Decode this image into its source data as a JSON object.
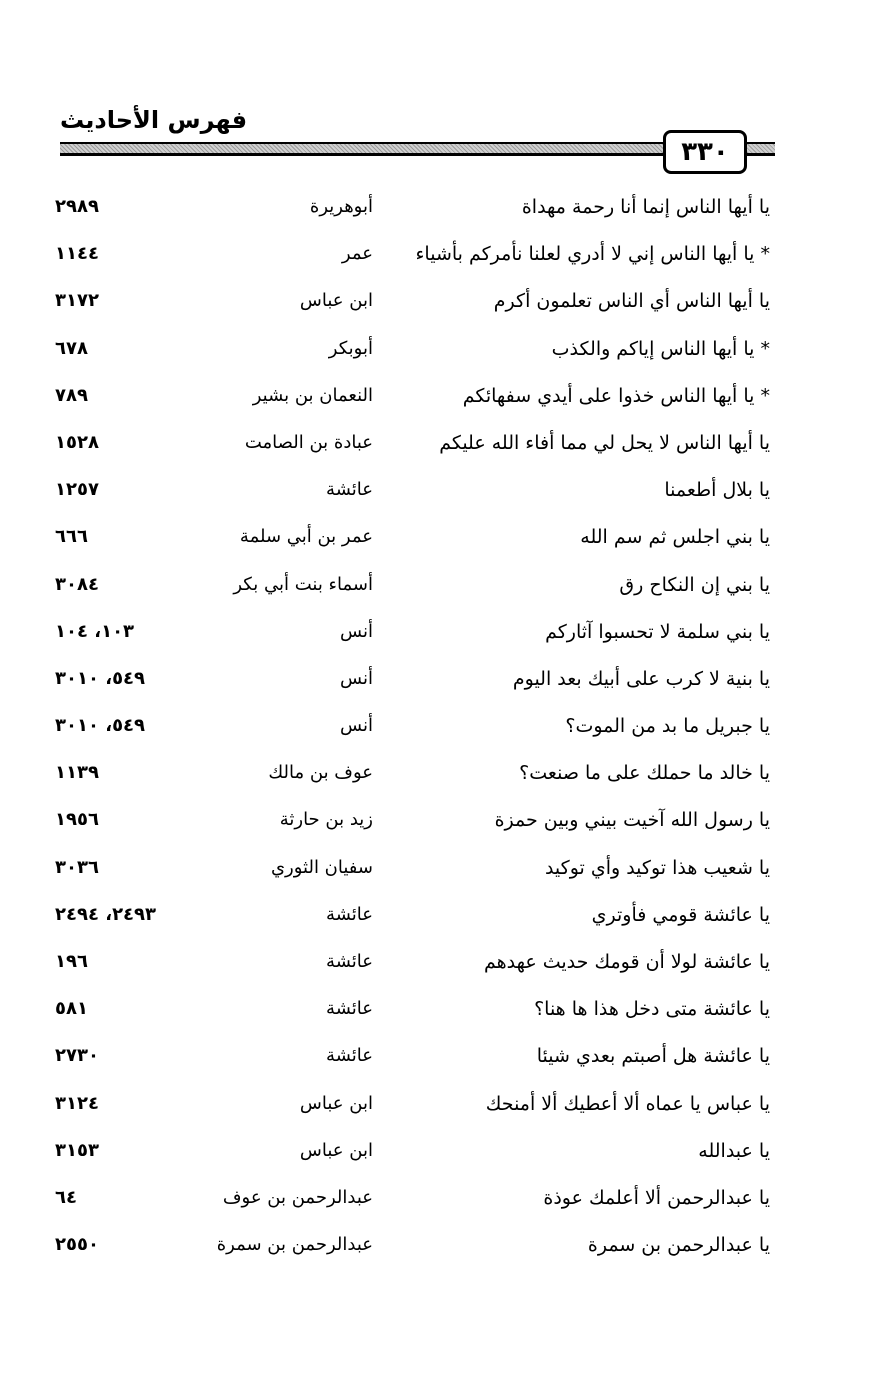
{
  "header": {
    "title": "فهرس الأحاديث",
    "page_number": "٣٣٠"
  },
  "rows": [
    {
      "text": "يا أيها الناس إنما أنا رحمة مهداة",
      "narrator": "أبوهريرة",
      "refs": "٢٩٨٩"
    },
    {
      "text": "* يا أيها الناس إني لا أدري لعلنا نأمركم بأشياء",
      "narrator": "عمر",
      "refs": "١١٤٤"
    },
    {
      "text": "يا أيها الناس أي الناس تعلمون أكرم",
      "narrator": "ابن عباس",
      "refs": "٣١٧٢"
    },
    {
      "text": "* يا أيها الناس إياكم والكذب",
      "narrator": "أبوبكر",
      "refs": "٦٧٨"
    },
    {
      "text": "* يا أيها الناس خذوا على أيدي سفهائكم",
      "narrator": "النعمان بن بشير",
      "refs": "٧٨٩"
    },
    {
      "text": "يا أيها الناس لا يحل لي مما أفاء الله عليكم",
      "narrator": "عبادة بن الصامت",
      "refs": "١٥٢٨"
    },
    {
      "text": "يا بلال أطعمنا",
      "narrator": "عائشة",
      "refs": "١٢٥٧"
    },
    {
      "text": "يا بني اجلس ثم سم الله",
      "narrator": "عمر بن أبي سلمة",
      "refs": "٦٦٦"
    },
    {
      "text": "يا بني إن النكاح رق",
      "narrator": "أسماء بنت أبي بكر",
      "refs": "٣٠٨٤"
    },
    {
      "text": "يا بني سلمة لا تحسبوا آثاركم",
      "narrator": "أنس",
      "refs": "١٠٣، ١٠٤"
    },
    {
      "text": "يا بنية لا كرب على أبيك بعد اليوم",
      "narrator": "أنس",
      "refs": "٥٤٩، ٣٠١٠"
    },
    {
      "text": "يا جبريل ما بد من الموت؟",
      "narrator": "أنس",
      "refs": "٥٤٩، ٣٠١٠"
    },
    {
      "text": "يا خالد ما حملك على ما صنعت؟",
      "narrator": "عوف بن مالك",
      "refs": "١١٣٩"
    },
    {
      "text": "يا رسول الله آخيت بيني وبين حمزة",
      "narrator": "زيد بن حارثة",
      "refs": "١٩٥٦"
    },
    {
      "text": "يا شعيب هذا توكيد وأي توكيد",
      "narrator": "سفيان الثوري",
      "refs": "٣٠٣٦"
    },
    {
      "text": "يا عائشة قومي فأوتري",
      "narrator": "عائشة",
      "refs": "٢٤٩٣، ٢٤٩٤"
    },
    {
      "text": "يا عائشة لولا أن قومك حديث عهدهم",
      "narrator": "عائشة",
      "refs": "١٩٦"
    },
    {
      "text": "يا عائشة متى دخل هذا ها هنا؟",
      "narrator": "عائشة",
      "refs": "٥٨١"
    },
    {
      "text": "يا عائشة هل أصبتم بعدي شيئا",
      "narrator": "عائشة",
      "refs": "٢٧٣٠"
    },
    {
      "text": "يا عباس يا عماه ألا أعطيك ألا أمنحك",
      "narrator": "ابن عباس",
      "refs": "٣١٢٤"
    },
    {
      "text": "يا عبدالله",
      "narrator": "ابن عباس",
      "refs": "٣١٥٣"
    },
    {
      "text": "يا عبدالرحمن ألا أعلمك عوذة",
      "narrator": "عبدالرحمن بن عوف",
      "refs": "٦٤"
    },
    {
      "text": "يا عبدالرحمن بن سمرة",
      "narrator": "عبدالرحمن بن سمرة",
      "refs": "٢٥٥٠"
    }
  ]
}
